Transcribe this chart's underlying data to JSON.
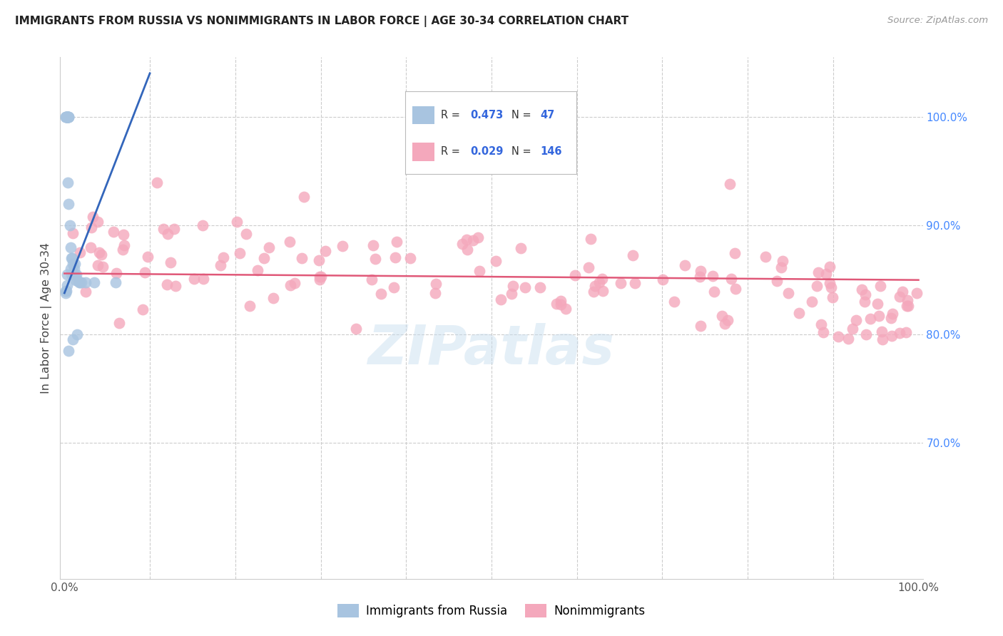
{
  "title": "IMMIGRANTS FROM RUSSIA VS NONIMMIGRANTS IN LABOR FORCE | AGE 30-34 CORRELATION CHART",
  "source": "Source: ZipAtlas.com",
  "ylabel": "In Labor Force | Age 30-34",
  "blue_R": 0.473,
  "blue_N": 47,
  "pink_R": 0.029,
  "pink_N": 146,
  "blue_color": "#a8c4e0",
  "blue_edge_color": "#90afd0",
  "blue_line_color": "#3366bb",
  "pink_color": "#f4a8bc",
  "pink_edge_color": "#e090a8",
  "pink_line_color": "#e05878",
  "legend_label_blue": "Immigrants from Russia",
  "legend_label_pink": "Nonimmigrants",
  "watermark": "ZIPatlas",
  "xlim_min": -0.005,
  "xlim_max": 1.005,
  "ylim_min": 0.575,
  "ylim_max": 1.055,
  "grid_color": "#cccccc",
  "title_color": "#222222",
  "source_color": "#999999",
  "ylabel_color": "#444444",
  "right_tick_color": "#4488ff",
  "xtick_color": "#555555",
  "legend_text_dark": "#333333",
  "legend_text_blue": "#3366dd"
}
